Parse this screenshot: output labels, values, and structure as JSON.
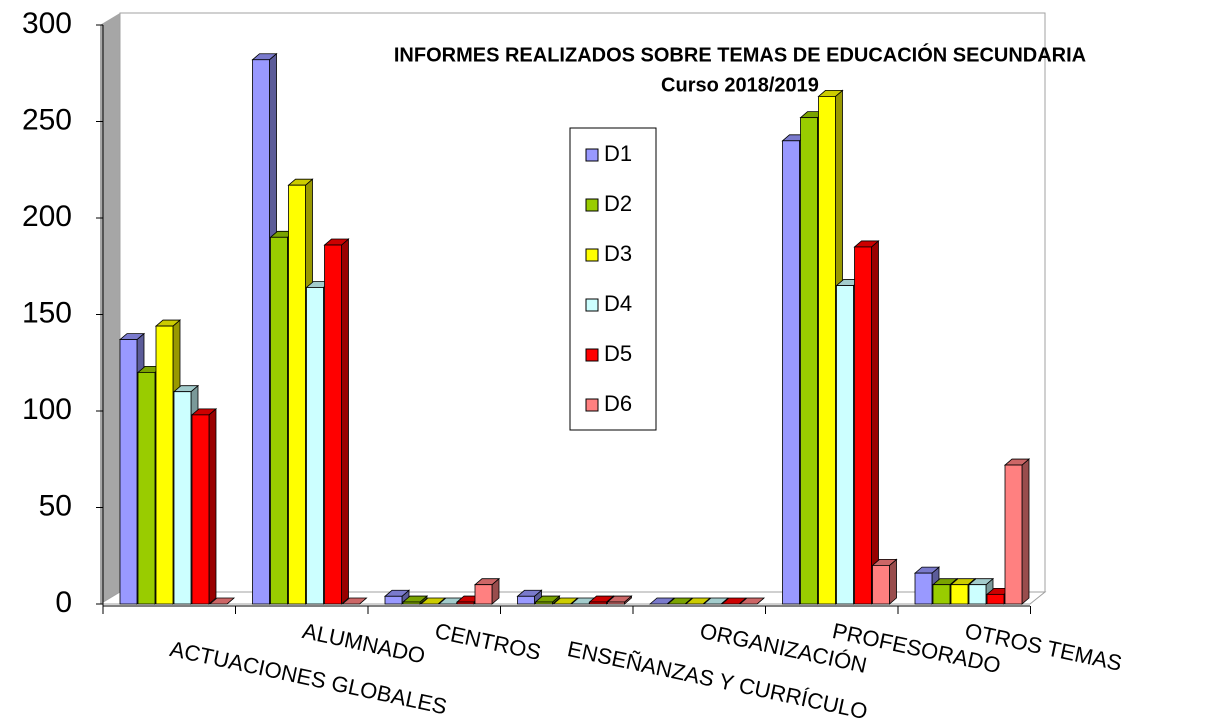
{
  "chart_data": {
    "type": "bar3d",
    "title": "INFORMES REALIZADOS SOBRE TEMAS DE EDUCACIÓN SECUNDARIA",
    "subtitle": "Curso 2018/2019",
    "categories": [
      "ACTUACIONES GLOBALES",
      "ALUMNADO",
      "CENTROS",
      "ENSEÑANZAS Y CURRÍCULO",
      "ORGANIZACIÓN",
      "PROFESORADO",
      "OTROS TEMAS"
    ],
    "series": [
      {
        "name": "D1",
        "color": "#9999ff",
        "values": [
          137,
          282,
          4,
          4,
          0,
          240,
          16
        ]
      },
      {
        "name": "D2",
        "color": "#99cc00",
        "values": [
          120,
          190,
          1,
          1,
          0,
          252,
          10
        ]
      },
      {
        "name": "D3",
        "color": "#ffff00",
        "values": [
          144,
          217,
          0,
          0,
          0,
          263,
          10
        ]
      },
      {
        "name": "D4",
        "color": "#ccffff",
        "values": [
          110,
          164,
          0,
          0,
          0,
          165,
          10
        ]
      },
      {
        "name": "D5",
        "color": "#ff0000",
        "values": [
          98,
          186,
          1,
          1,
          0,
          185,
          5
        ]
      },
      {
        "name": "D6",
        "color": "#ff8080",
        "values": [
          0,
          0,
          10,
          1,
          0,
          20,
          72
        ]
      }
    ],
    "ylim": [
      0,
      300
    ],
    "yticks": [
      0,
      50,
      100,
      150,
      200,
      250,
      300
    ],
    "legend": "center"
  }
}
